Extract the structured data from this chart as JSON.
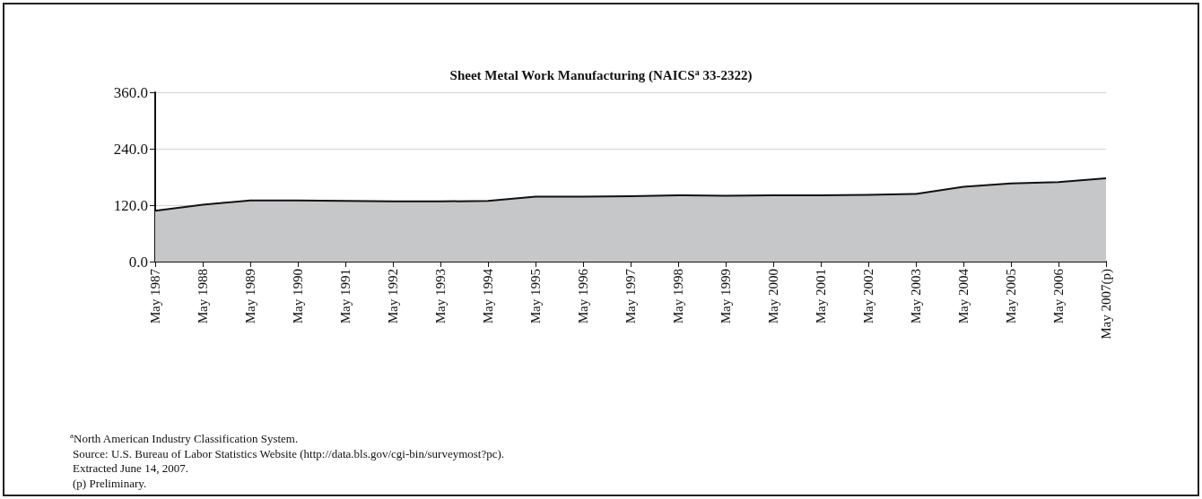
{
  "chart_data": {
    "type": "area",
    "title": "Sheet Metal Work Manufacturing (NAICS$^{a}$ 33-2322)",
    "categories": [
      "May 1987",
      "May 1988",
      "May 1989",
      "May 1990",
      "May 1991",
      "May 1992",
      "May 1993",
      "May 1994",
      "May 1995",
      "May 1996",
      "May 1997",
      "May 1998",
      "May 1999",
      "May 2000",
      "May 2001",
      "May 2002",
      "May 2003",
      "May 2004",
      "May 2005",
      "May 2006",
      "May 2007(p)"
    ],
    "series": [
      {
        "color": "#c6c7c9",
        "values": [
          108,
          121,
          130,
          130,
          129,
          128,
          128,
          129,
          138,
          138,
          139,
          141,
          140,
          141,
          141,
          142,
          144,
          159,
          166,
          169,
          177
        ]
      }
    ],
    "ylim": [
      0,
      360
    ],
    "yticks": [
      {
        "value": 0,
        "label": "0.0"
      },
      {
        "value": 120,
        "label": "120.0"
      },
      {
        "value": 240,
        "label": "240.0"
      },
      {
        "value": 360,
        "label": "360.0"
      }
    ],
    "grid": "y",
    "annotations": [
      "$^{a}$North American Industry Classification System.",
      "Source: U.S. Bureau of Labor Statistics Website (http://data.bls.gov/cgi-bin/surveymost?pc).",
      "Extracted June 14, 2007.",
      "(p) Preliminary."
    ]
  }
}
